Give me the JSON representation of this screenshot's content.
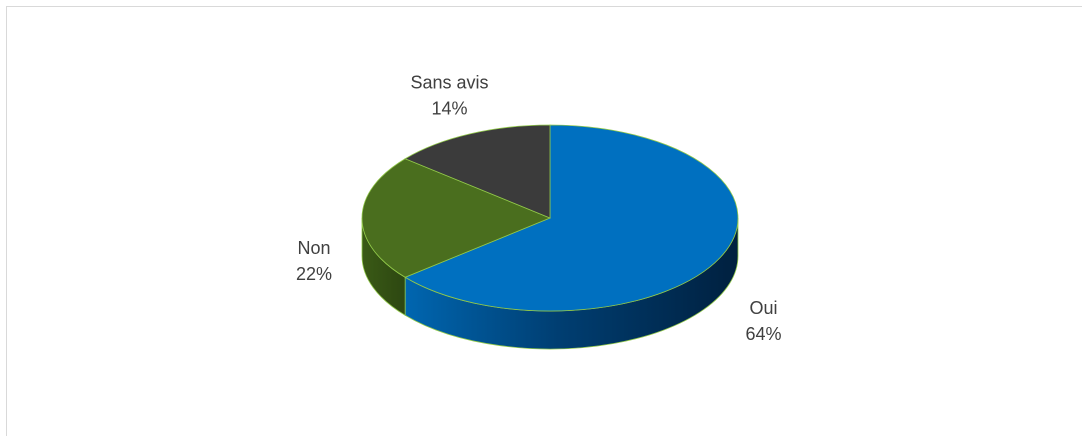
{
  "chart_data": {
    "type": "pie",
    "style": "3d",
    "categories": [
      "Oui",
      "Non",
      "Sans avis"
    ],
    "values": [
      64,
      22,
      14
    ],
    "labels": [
      "64%",
      "22%",
      "14%"
    ],
    "colors": [
      "#0070c0",
      "#4a6e1e",
      "#3b3b3b"
    ],
    "title": "",
    "legend": "none"
  }
}
